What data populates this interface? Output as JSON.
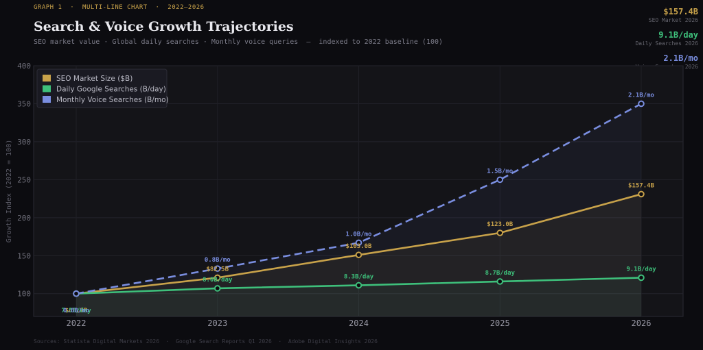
{
  "header": {
    "kicker": "GRAPH 1  ·  MULTI-LINE CHART  ·  2022–2026",
    "title": "Search & Voice Growth Trajectories",
    "subtitle": "SEO market value · Global daily searches · Monthly voice queries  —  indexed to 2022 baseline (100)"
  },
  "kpis": [
    {
      "value": "$157.4B",
      "label": "SEO Market 2026",
      "color": "#c8a24a"
    },
    {
      "value": "9.1B/day",
      "label": "Daily Searches 2026",
      "color": "#3ec07b"
    },
    {
      "value": "2.1B/mo",
      "label": "Voice Searches 2026",
      "color": "#7a8ee0"
    }
  ],
  "footer": "Sources: Statista Digital Markets 2026  ·  Google Search Reports Q1 2026  ·  Adobe Digital Insights 2026",
  "chart_data": {
    "type": "line",
    "ylabel": "Growth Index  (2022 = 100)",
    "ylim": [
      70,
      400
    ],
    "yticks": [
      100,
      150,
      200,
      250,
      300,
      350,
      400
    ],
    "categories": [
      "2022",
      "2023",
      "2024",
      "2025",
      "2026"
    ],
    "legend_position": "top-left",
    "grid": true,
    "series": [
      {
        "name": "SEO Market Size ($B)",
        "color": "#c8a24a",
        "style": "solid",
        "values": [
          100,
          121,
          151,
          180,
          231
        ],
        "labels": [
          "$68.2B",
          "$82.5B",
          "$103.0B",
          "$123.0B",
          "$157.4B"
        ]
      },
      {
        "name": "Daily Google Searches (B/day)",
        "color": "#3ec07b",
        "style": "solid",
        "values": [
          100,
          107,
          111,
          116,
          121
        ],
        "labels": [
          "7.5B/day",
          "8.0B/day",
          "8.3B/day",
          "8.7B/day",
          "9.1B/day"
        ]
      },
      {
        "name": "Monthly Voice Searches (B/mo)",
        "color": "#7a8ee0",
        "style": "dashed",
        "values": [
          100,
          133,
          167,
          250,
          350
        ],
        "labels": [
          "0.6B/mo",
          "0.8B/mo",
          "1.0B/mo",
          "1.5B/mo",
          "2.1B/mo"
        ]
      }
    ]
  }
}
